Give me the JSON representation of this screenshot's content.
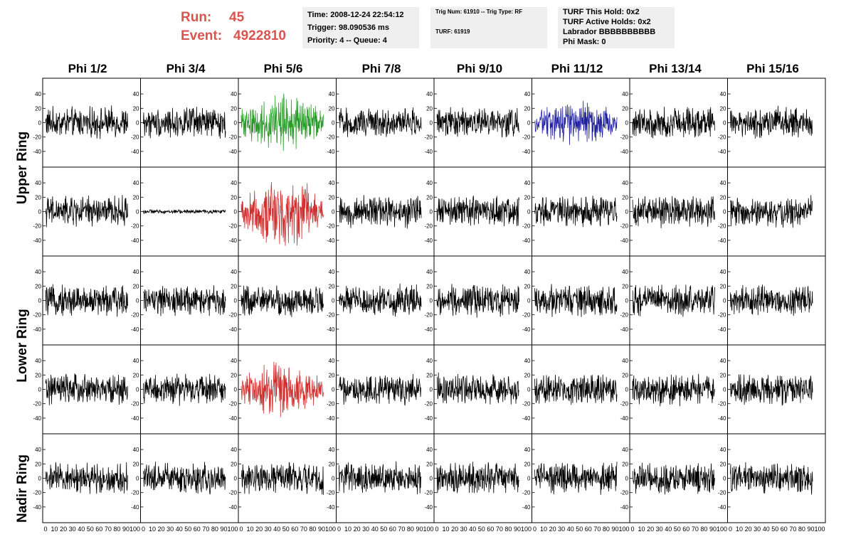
{
  "run": {
    "run_label": "Run:",
    "run_value": "45",
    "event_label": "Event:",
    "event_value": "4922810"
  },
  "info_time": {
    "time": "Time: 2008-12-24 22:54:12",
    "trigger": "Trigger: 98.090536 ms",
    "priority": "Priority: 4 -- Queue: 4"
  },
  "info_trig": {
    "trig": "Trig Num: 61910 -- Trig Type: RF",
    "turf": "TURF: 61919"
  },
  "info_turf": {
    "hold": "TURF This Hold: 0x2",
    "active": "TURF Active Holds: 0x2",
    "labrador": "Labrador BBBBBBBBBB",
    "mask": "Phi Mask: 0"
  },
  "columns": [
    "Phi 1/2",
    "Phi 3/4",
    "Phi 5/6",
    "Phi 7/8",
    "Phi 9/10",
    "Phi 11/12",
    "Phi 13/14",
    "Phi 15/16"
  ],
  "rings": [
    "Upper Ring",
    "Lower Ring",
    "Nadir Ring"
  ],
  "y_ticks": [
    "40",
    "20",
    "0",
    "-20",
    "-40"
  ],
  "x_ticks": [
    "0",
    "10",
    "20",
    "30",
    "40",
    "50",
    "60",
    "70",
    "80",
    "90",
    "100"
  ],
  "colors": {
    "text_red": "#d9534f",
    "green": "#2a9a2a",
    "blue": "#1f1fa0",
    "red": "#d03030",
    "black": "#000000",
    "panel_bg": "#efefef"
  },
  "chart_data": {
    "type": "line",
    "xlim": [
      0,
      100
    ],
    "ylim": [
      -50,
      50
    ],
    "rows": 5,
    "cols": 8,
    "highlighted": [
      {
        "row": 0,
        "col": 2,
        "color": "green",
        "amplitude": 20
      },
      {
        "row": 0,
        "col": 5,
        "color": "blue",
        "amplitude": 16
      },
      {
        "row": 1,
        "col": 2,
        "color": "red",
        "amplitude": 24
      },
      {
        "row": 3,
        "col": 2,
        "color": "red",
        "amplitude": 20
      }
    ],
    "quiet_channels": [
      {
        "row": 1,
        "col": 1,
        "amplitude": 2
      }
    ],
    "default_amplitude": 15
  }
}
